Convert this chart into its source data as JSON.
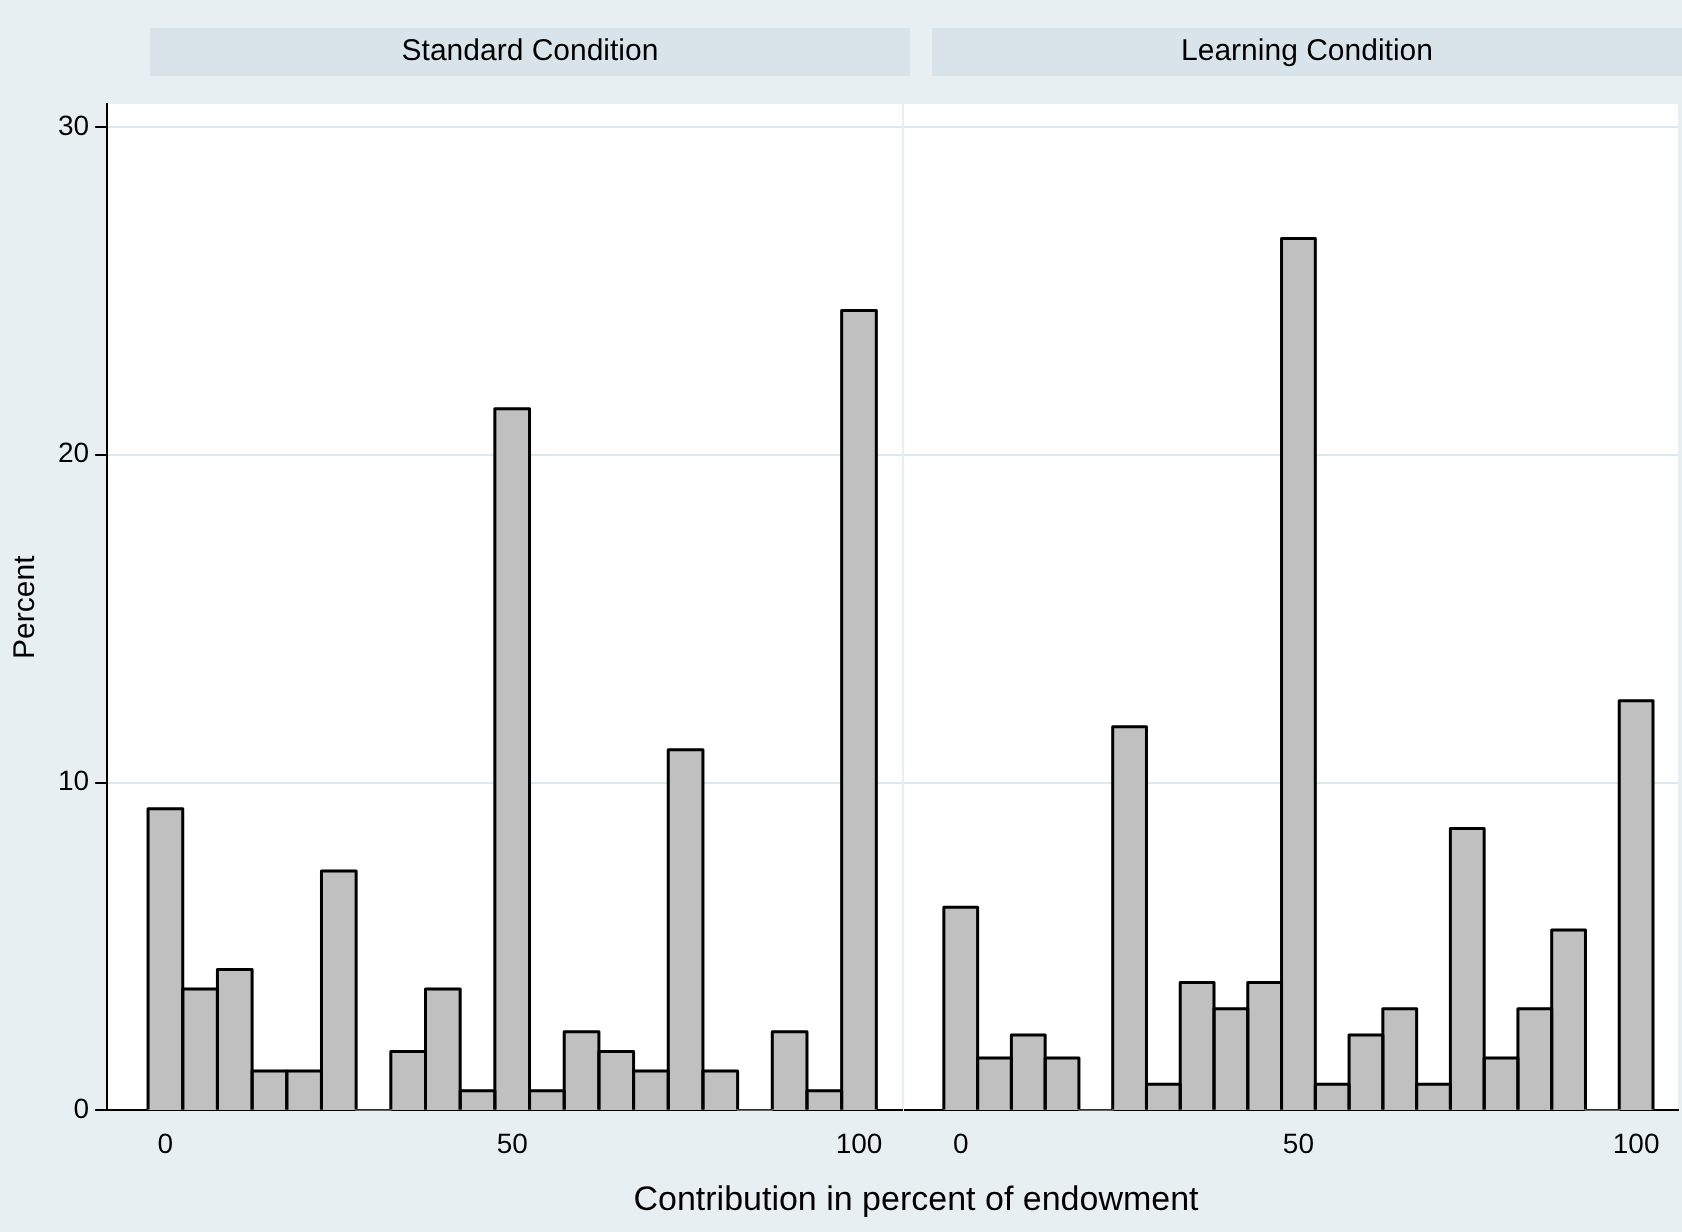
{
  "chart_data": [
    {
      "type": "histogram",
      "title": "Standard Condition",
      "xlabel": "Contribution in percent of endowment",
      "ylabel": "Percent",
      "bins": [
        -2.5,
        2.5,
        7.5,
        12.5,
        17.5,
        22.5,
        27.5,
        32.5,
        37.5,
        42.5,
        47.5,
        52.5,
        57.5,
        62.5,
        67.5,
        72.5,
        77.5,
        82.5,
        87.5,
        92.5,
        97.5,
        102.5
      ],
      "values": [
        9.2,
        3.7,
        4.3,
        1.2,
        1.2,
        7.3,
        0,
        1.8,
        3.7,
        0.6,
        21.4,
        0.6,
        2.4,
        1.8,
        1.2,
        11.0,
        1.2,
        0,
        2.4,
        0.6,
        24.4
      ],
      "color": "#c0c0c0",
      "xlim": [
        -8.4,
        106.2
      ],
      "ylim": [
        0,
        30.7
      ],
      "xticks": [
        0,
        50,
        100
      ],
      "yticks": [
        0,
        10,
        20,
        30
      ],
      "grid": "y",
      "legend": false
    },
    {
      "type": "histogram",
      "title": "Learning Condition",
      "bins": [
        -2.5,
        2.5,
        7.5,
        12.5,
        17.5,
        22.5,
        27.5,
        32.5,
        37.5,
        42.5,
        47.5,
        52.5,
        57.5,
        62.5,
        67.5,
        72.5,
        77.5,
        82.5,
        87.5,
        92.5,
        97.5,
        102.5
      ],
      "values": [
        6.2,
        1.6,
        2.3,
        1.6,
        0,
        11.7,
        0.8,
        3.9,
        3.1,
        3.9,
        26.6,
        0.8,
        2.3,
        3.1,
        0.8,
        8.6,
        1.6,
        3.1,
        5.5,
        0,
        12.5
      ],
      "color": "#c0c0c0",
      "xlim": [
        -8.4,
        106.2
      ],
      "ylim": [
        0,
        30.7
      ],
      "xticks": [
        0,
        50,
        100
      ],
      "yticks": [
        0,
        10,
        20,
        30
      ],
      "grid": "y",
      "tick_labels": "x",
      "legend": false
    }
  ]
}
